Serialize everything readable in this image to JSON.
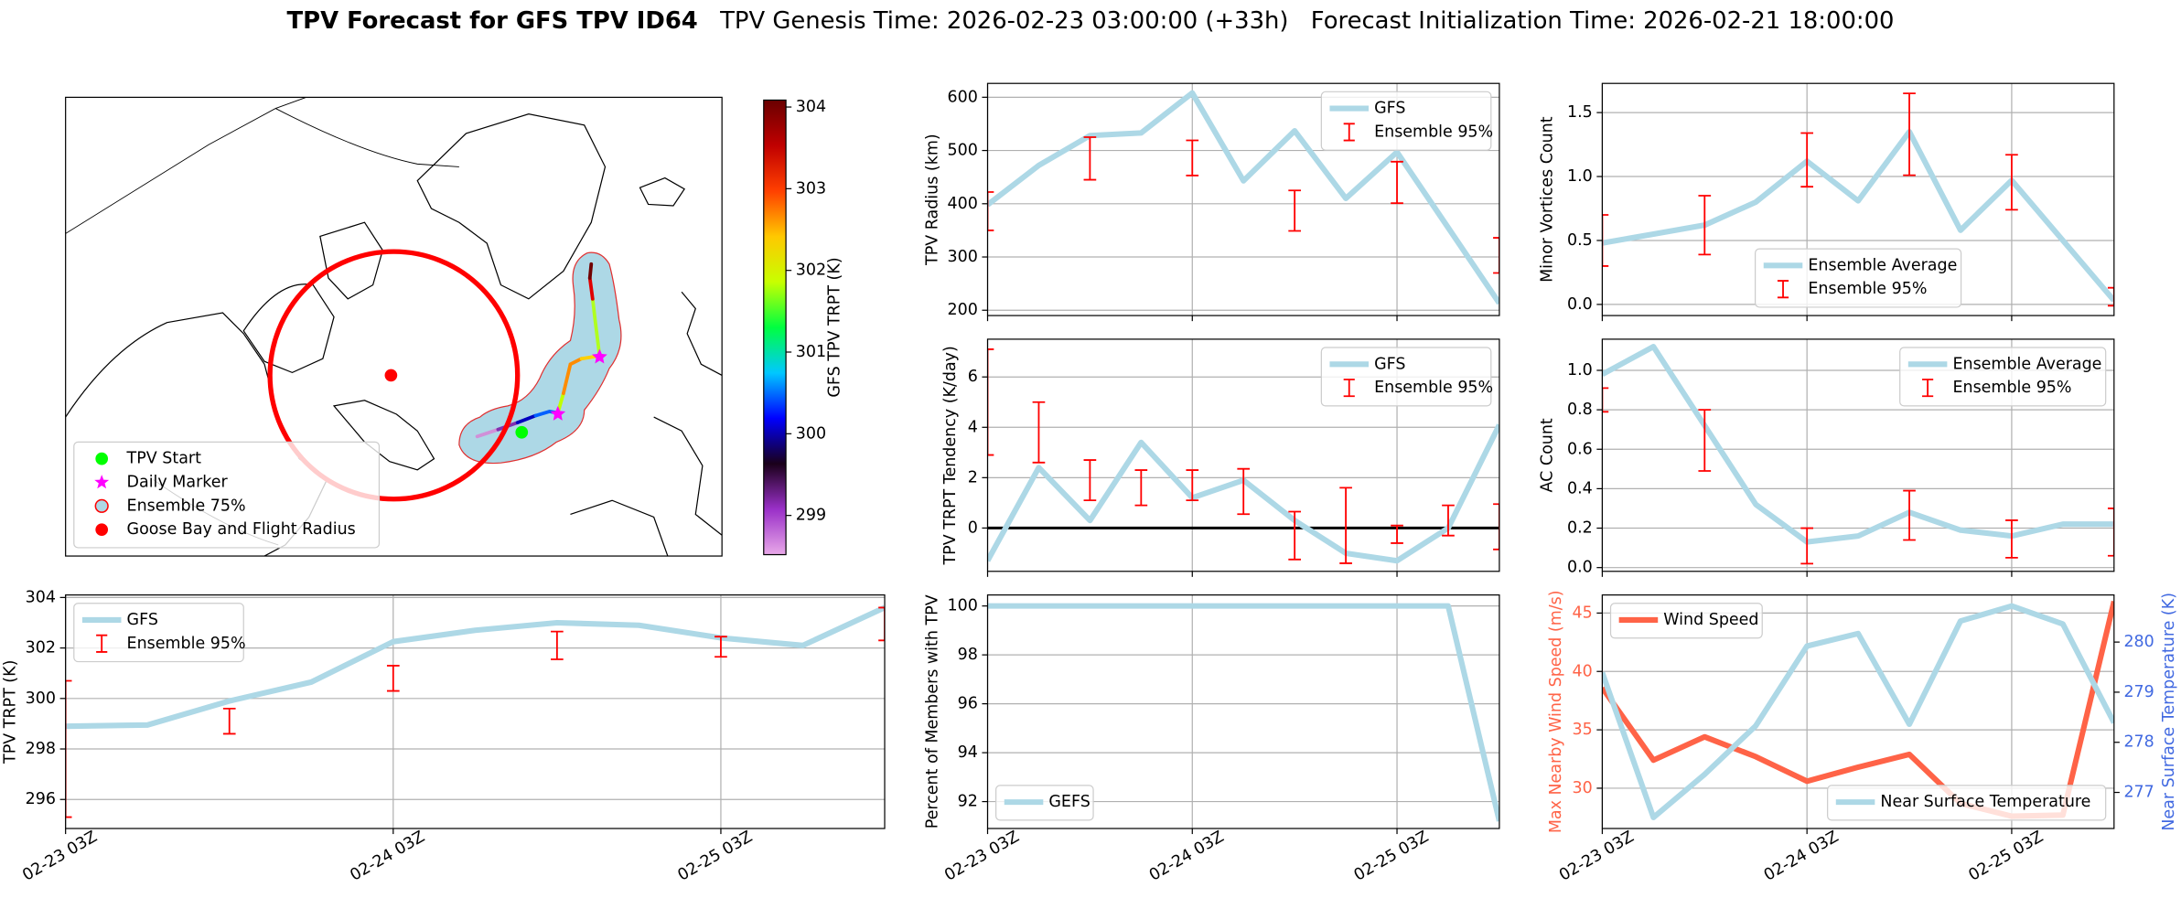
{
  "title": "TPV Forecast for GFS TPV ID64",
  "subtitles": [
    "TPV Genesis Time: 2026-02-23 03:00:00 (+33h)",
    "Forecast Initialization Time: 2026-02-21 18:00:00"
  ],
  "chart_data": [
    {
      "type": "map",
      "legend": "lower left",
      "legend_entries": [
        {
          "name": "TPV Start",
          "color": "#00ff00",
          "marker": "circle"
        },
        {
          "name": "Daily Marker",
          "color": "#ff00ff",
          "marker": "star"
        },
        {
          "name": "Ensemble 75%",
          "color": "#add8e6",
          "edgecolor": "#ff0000",
          "marker": "circle"
        },
        {
          "name": "Goose Bay and Flight Radius",
          "color": "#ff0000",
          "marker": "circle"
        }
      ],
      "colorbar": {
        "label": "GFS TPV TRPT (K)",
        "clim": [
          298.52,
          304.085
        ],
        "ticks": [
          299,
          300,
          301,
          302,
          303,
          304
        ],
        "colors": [
          "#e8a8e8",
          "#9a30c8",
          "#1a001a",
          "#0000ff",
          "#00c8ff",
          "#00ff40",
          "#c8ff00",
          "#ffc800",
          "#ff4000",
          "#c00000",
          "#6a0000"
        ]
      }
    },
    {
      "type": "line",
      "ylabel": "TPV Radius (km)",
      "legend": "upper right",
      "grid": true,
      "show_xticklabels": false,
      "x": [
        "02-23 03Z",
        "02-23 09Z",
        "02-23 15Z",
        "02-23 21Z",
        "02-24 03Z",
        "02-24 09Z",
        "02-24 15Z",
        "02-24 21Z",
        "02-25 03Z",
        "02-25 09Z",
        "02-25 15Z"
      ],
      "xlim": [
        "02-23 03Z",
        "02-25 15Z"
      ],
      "xticks": [
        "02-23 03Z",
        "02-24 03Z",
        "02-25 03Z"
      ],
      "ylim": [
        190,
        626
      ],
      "yticks": [
        200,
        300,
        400,
        500,
        600
      ],
      "series": [
        {
          "name": "GFS",
          "type": "line",
          "color": "#add8e6",
          "values": [
            398,
            472,
            528,
            533,
            608,
            443,
            537,
            410,
            497,
            355,
            213
          ]
        },
        {
          "name": "Ensemble 95%",
          "type": "errorbar",
          "color": "#ff0000",
          "values": [
            386,
            null,
            485,
            null,
            486,
            null,
            387,
            null,
            440,
            null,
            303
          ],
          "errors": [
            36,
            null,
            40,
            null,
            33,
            null,
            38,
            null,
            39,
            null,
            33
          ]
        }
      ]
    },
    {
      "type": "line",
      "ylabel": "Minor Vortices Count",
      "legend": "lower center",
      "grid": true,
      "show_xticklabels": false,
      "x": [
        "02-23 03Z",
        "02-23 09Z",
        "02-23 15Z",
        "02-23 21Z",
        "02-24 03Z",
        "02-24 09Z",
        "02-24 15Z",
        "02-24 21Z",
        "02-25 03Z",
        "02-25 09Z",
        "02-25 15Z"
      ],
      "xlim": [
        "02-23 03Z",
        "02-25 15Z"
      ],
      "xticks": [
        "02-23 03Z",
        "02-24 03Z",
        "02-25 03Z"
      ],
      "ylim": [
        -0.087,
        1.728
      ],
      "yticks": [
        {
          "value": 0,
          "label": "0.0"
        },
        0.5,
        {
          "value": 1,
          "label": "1.0"
        },
        1.5
      ],
      "series": [
        {
          "name": "Ensemble Average",
          "type": "line",
          "color": "#add8e6",
          "values": [
            0.48,
            0.55,
            0.62,
            0.8,
            1.12,
            0.81,
            1.35,
            0.58,
            0.97,
            0.5,
            0.03
          ]
        },
        {
          "name": "Ensemble 95%",
          "type": "errorbar",
          "color": "#ff0000",
          "values": [
            0.5,
            null,
            0.62,
            null,
            1.13,
            null,
            1.33,
            null,
            0.955,
            null,
            0.06
          ],
          "errors": [
            0.2,
            null,
            0.23,
            null,
            0.21,
            null,
            0.32,
            null,
            0.215,
            null,
            0.07
          ]
        }
      ]
    },
    {
      "type": "line",
      "ylabel": "TPV TRPT Tendency (K/day)",
      "legend": "upper right",
      "grid": true,
      "show_xticklabels": false,
      "x": [
        "02-23 03Z",
        "02-23 09Z",
        "02-23 15Z",
        "02-23 21Z",
        "02-24 03Z",
        "02-24 09Z",
        "02-24 15Z",
        "02-24 21Z",
        "02-25 03Z",
        "02-25 09Z",
        "02-25 15Z"
      ],
      "xlim": [
        "02-23 03Z",
        "02-25 15Z"
      ],
      "xticks": [
        "02-23 03Z",
        "02-24 03Z",
        "02-25 03Z"
      ],
      "ylim": [
        -1.72,
        7.5
      ],
      "yticks": [
        0,
        2,
        4,
        6
      ],
      "hline": {
        "value": 0,
        "color": "#000000"
      },
      "series": [
        {
          "name": "GFS",
          "type": "line",
          "color": "#add8e6",
          "values": [
            -1.3,
            2.4,
            0.3,
            3.4,
            1.2,
            1.9,
            0.3,
            -1.0,
            -1.3,
            0.0,
            4.1
          ]
        },
        {
          "name": "Ensemble 95%",
          "type": "errorbar",
          "color": "#ff0000",
          "values": [
            5.0,
            3.8,
            1.9,
            1.6,
            1.7,
            1.45,
            -0.3,
            0.1,
            -0.25,
            0.3,
            0.05
          ],
          "errors": [
            2.1,
            1.2,
            0.8,
            0.7,
            0.6,
            0.9,
            0.95,
            1.5,
            0.35,
            0.6,
            0.9
          ]
        }
      ]
    },
    {
      "type": "line",
      "ylabel": "AC Count",
      "legend": "upper right",
      "grid": true,
      "show_xticklabels": false,
      "x": [
        "02-23 03Z",
        "02-23 09Z",
        "02-23 15Z",
        "02-23 21Z",
        "02-24 03Z",
        "02-24 09Z",
        "02-24 15Z",
        "02-24 21Z",
        "02-25 03Z",
        "02-25 09Z",
        "02-25 15Z"
      ],
      "xlim": [
        "02-23 03Z",
        "02-25 15Z"
      ],
      "xticks": [
        "02-23 03Z",
        "02-24 03Z",
        "02-25 03Z"
      ],
      "ylim": [
        -0.019,
        1.158
      ],
      "yticks": [
        {
          "value": 0,
          "label": "0.0"
        },
        0.2,
        0.4,
        0.6,
        0.8,
        {
          "value": 1,
          "label": "1.0"
        }
      ],
      "series": [
        {
          "name": "Ensemble Average",
          "type": "line",
          "color": "#add8e6",
          "values": [
            0.98,
            1.12,
            0.72,
            0.32,
            0.13,
            0.16,
            0.28,
            0.19,
            0.16,
            0.22,
            0.22
          ]
        },
        {
          "name": "Ensemble 95%",
          "type": "errorbar",
          "color": "#ff0000",
          "values": [
            0.85,
            null,
            0.645,
            null,
            0.11,
            null,
            0.265,
            null,
            0.145,
            null,
            0.18
          ],
          "errors": [
            0.06,
            null,
            0.155,
            null,
            0.09,
            null,
            0.125,
            null,
            0.095,
            null,
            0.12
          ]
        }
      ]
    },
    {
      "type": "line",
      "ylabel": "TPV TRPT (K)",
      "legend": "upper left",
      "grid": true,
      "show_xticklabels": true,
      "x": [
        "02-23 03Z",
        "02-23 09Z",
        "02-23 15Z",
        "02-23 21Z",
        "02-24 03Z",
        "02-24 09Z",
        "02-24 15Z",
        "02-24 21Z",
        "02-25 03Z",
        "02-25 09Z",
        "02-25 15Z"
      ],
      "xlim": [
        "02-23 03Z",
        "02-25 15Z"
      ],
      "xticks": [
        "02-23 03Z",
        "02-24 03Z",
        "02-25 03Z"
      ],
      "ylim": [
        294.85,
        304.1
      ],
      "yticks": [
        296,
        298,
        300,
        302,
        304
      ],
      "series": [
        {
          "name": "GFS",
          "type": "line",
          "color": "#add8e6",
          "values": [
            298.9,
            298.95,
            299.9,
            300.65,
            302.25,
            302.7,
            303.0,
            302.9,
            302.4,
            302.1,
            303.6
          ]
        },
        {
          "name": "Ensemble 95%",
          "type": "errorbar",
          "color": "#ff0000",
          "values": [
            298.0,
            null,
            299.1,
            null,
            300.8,
            null,
            302.1,
            null,
            302.05,
            null,
            302.95
          ],
          "errors": [
            2.7,
            null,
            0.5,
            null,
            0.5,
            null,
            0.55,
            null,
            0.4,
            null,
            0.65
          ]
        }
      ]
    },
    {
      "type": "line",
      "ylabel": "Percent of Members with TPV",
      "legend": "lower left",
      "grid": true,
      "show_xticklabels": true,
      "x": [
        "02-23 03Z",
        "02-23 09Z",
        "02-23 15Z",
        "02-23 21Z",
        "02-24 03Z",
        "02-24 09Z",
        "02-24 15Z",
        "02-24 21Z",
        "02-25 03Z",
        "02-25 09Z",
        "02-25 15Z"
      ],
      "xlim": [
        "02-23 03Z",
        "02-25 15Z"
      ],
      "xticks": [
        "02-23 03Z",
        "02-24 03Z",
        "02-25 03Z"
      ],
      "ylim": [
        90.9,
        100.45
      ],
      "yticks": [
        92,
        94,
        96,
        98,
        100
      ],
      "series": [
        {
          "name": "GEFS",
          "type": "line",
          "color": "#add8e6",
          "values": [
            100,
            100,
            100,
            100,
            100,
            100,
            100,
            100,
            100,
            100,
            91.2
          ]
        }
      ]
    },
    {
      "type": "line",
      "ylabel": "Max Nearby Wind Speed (m/s)",
      "y2label": "Near Surface Temperature (K)",
      "ycolor": "#ff6347",
      "y2color": "#4169e1",
      "grid": true,
      "show_xticklabels": true,
      "x": [
        "02-23 03Z",
        "02-23 09Z",
        "02-23 15Z",
        "02-23 21Z",
        "02-24 03Z",
        "02-24 09Z",
        "02-24 15Z",
        "02-24 21Z",
        "02-25 03Z",
        "02-25 09Z",
        "02-25 15Z"
      ],
      "xlim": [
        "02-23 03Z",
        "02-25 15Z"
      ],
      "xticks": [
        "02-23 03Z",
        "02-24 03Z",
        "02-25 03Z"
      ],
      "ylim": [
        26.55,
        46.55
      ],
      "yticks": [
        30,
        35,
        40,
        45
      ],
      "y2lim": [
        276.28,
        280.94
      ],
      "y2ticks": [
        277,
        278,
        279,
        280
      ],
      "series": [
        {
          "name": "Wind Speed",
          "type": "line",
          "color": "#ff6347",
          "legend": "upper left",
          "values": [
            38.6,
            32.4,
            34.4,
            32.7,
            30.6,
            31.8,
            32.9,
            28.7,
            27.6,
            27.7,
            46.0
          ]
        },
        {
          "name": "Near Surface Temperature",
          "type": "line",
          "axis": "y2",
          "color": "#add8e6",
          "legend": "lower right",
          "values": [
            279.39,
            276.5,
            277.36,
            278.33,
            279.92,
            280.17,
            278.36,
            280.42,
            280.72,
            280.36,
            278.39
          ]
        }
      ]
    }
  ]
}
